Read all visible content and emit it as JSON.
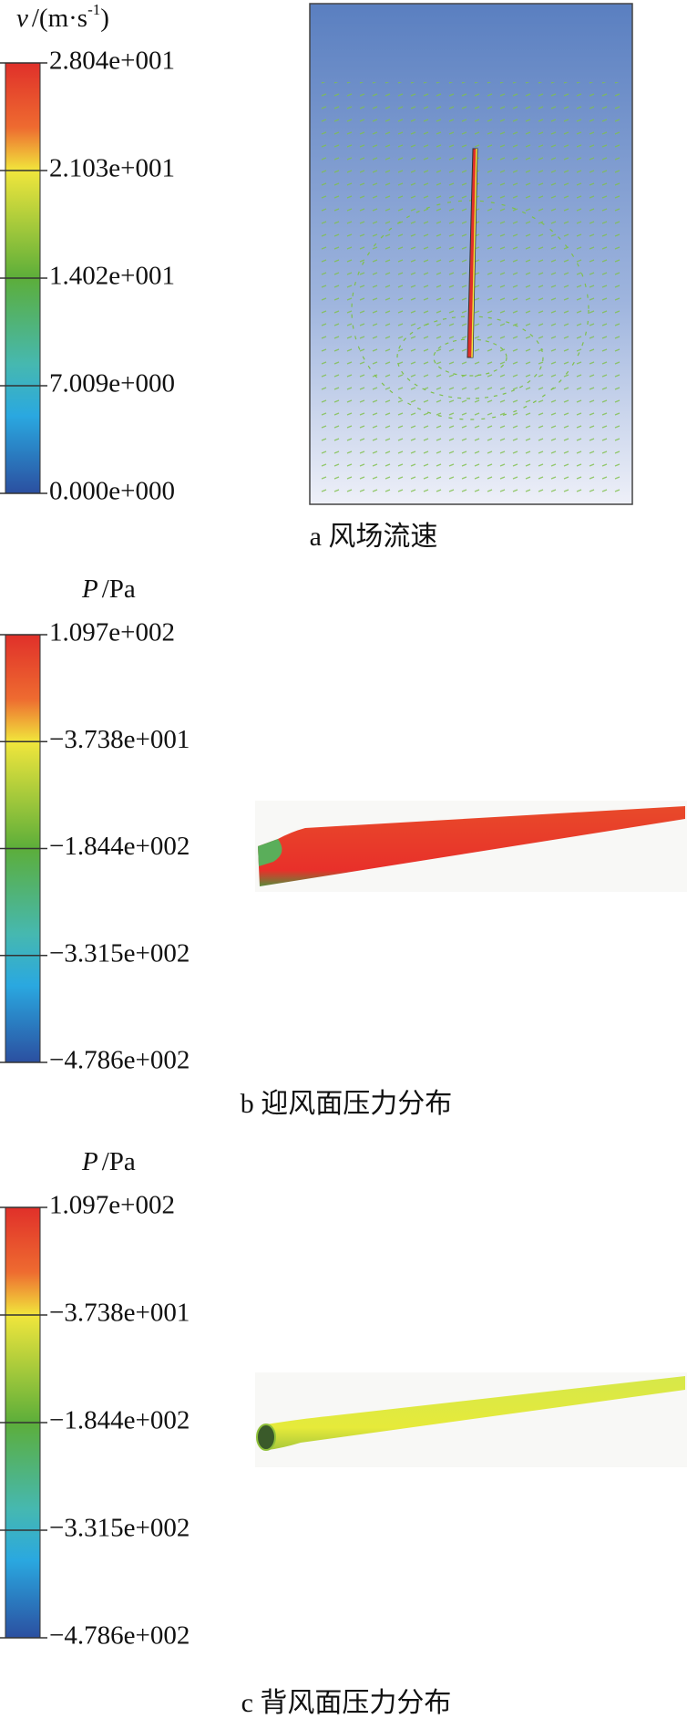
{
  "panels": [
    {
      "unit_label": {
        "symbol": "v",
        "unit": "/(m·s",
        "superscript": "-1",
        "suffix": ")"
      },
      "ticks": [
        "2.804e+001",
        "2.103e+001",
        "1.402e+001",
        "7.009e+000",
        "0.000e+000"
      ],
      "caption": "a 风场流速"
    },
    {
      "unit_label": {
        "symbol": "P",
        "unit": "/Pa"
      },
      "ticks": [
        "1.097e+002",
        "−3.738e+001",
        "−1.844e+002",
        "−3.315e+002",
        "−4.786e+002"
      ],
      "caption": "b 迎风面压力分布"
    },
    {
      "unit_label": {
        "symbol": "P",
        "unit": "/Pa"
      },
      "ticks": [
        "1.097e+002",
        "−3.738e+001",
        "−1.844e+002",
        "−3.315e+002",
        "−4.786e+002"
      ],
      "caption": "c 背风面压力分布"
    }
  ]
}
